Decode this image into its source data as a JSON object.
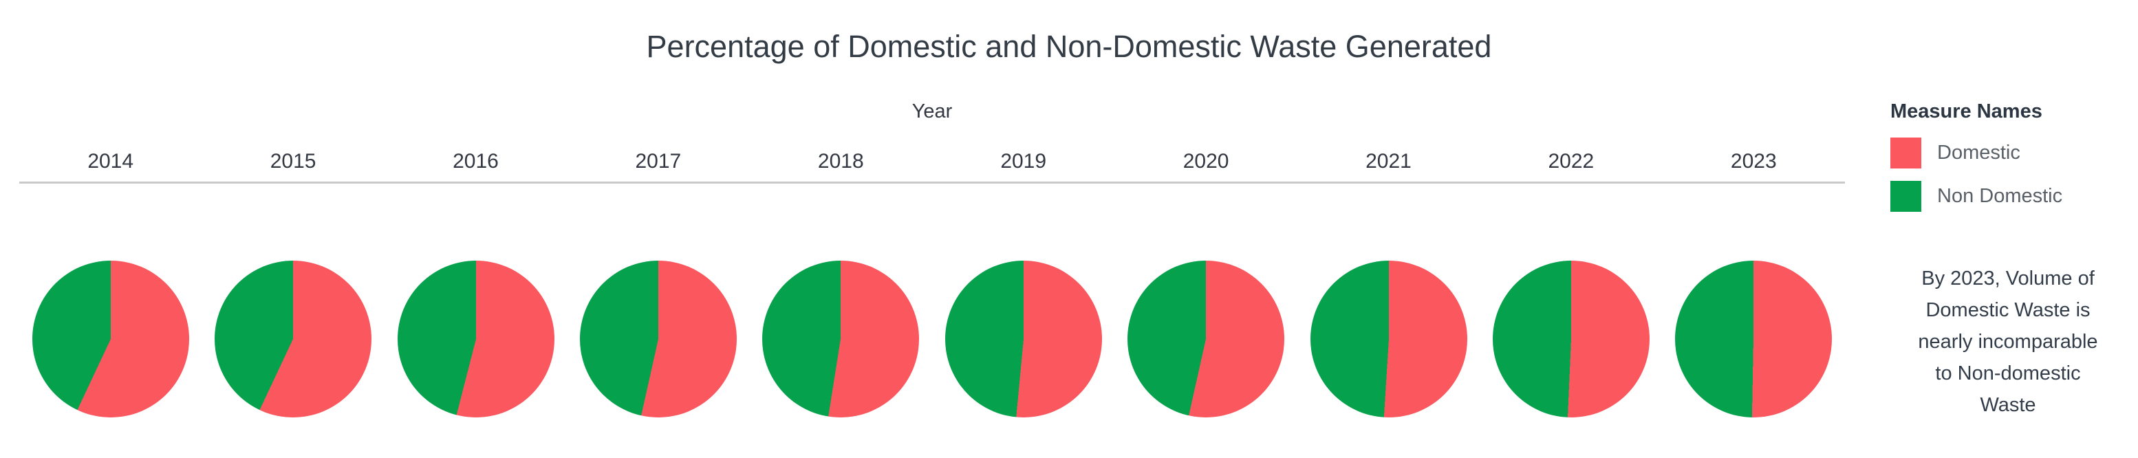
{
  "title": "Percentage of Domestic and Non-Domestic Waste Generated",
  "axis": {
    "label": "Year"
  },
  "legend": {
    "title": "Measure Names",
    "items": [
      {
        "label": "Domestic",
        "color": "#fa575e"
      },
      {
        "label": "Non Domestic",
        "color": "#06a14c"
      }
    ]
  },
  "annotation": {
    "text": "By 2023, Volume of\nDomestic Waste is\nnearly incomparable\nto Non-domestic\nWaste"
  },
  "colors": {
    "domestic": "#fa575e",
    "non_domestic": "#06a14c",
    "axis_line": "#c9c9c9",
    "title_text": "#333b45"
  },
  "chart_data": {
    "type": "pie",
    "title": "Percentage of Domestic and Non-Domestic Waste Generated",
    "subtitle": "",
    "categories": [
      "2014",
      "2015",
      "2016",
      "2017",
      "2018",
      "2019",
      "2020",
      "2021",
      "2022",
      "2023"
    ],
    "series": [
      {
        "name": "Domestic",
        "color": "#fa575e",
        "values": [
          57,
          57,
          54,
          53.5,
          52.5,
          51.5,
          53.5,
          51,
          50.7,
          50.3
        ]
      },
      {
        "name": "Non Domestic",
        "color": "#06a14c",
        "values": [
          43,
          43,
          46,
          46.5,
          47.5,
          48.5,
          46.5,
          49,
          49.3,
          49.7
        ]
      }
    ],
    "unit": "percent of total waste per year",
    "layout": {
      "pies_per_row": 10,
      "start_angle": "12-o-clock",
      "direction": "clockwise",
      "first_slice": "Domestic",
      "legend_position": "right",
      "grid": false
    }
  }
}
